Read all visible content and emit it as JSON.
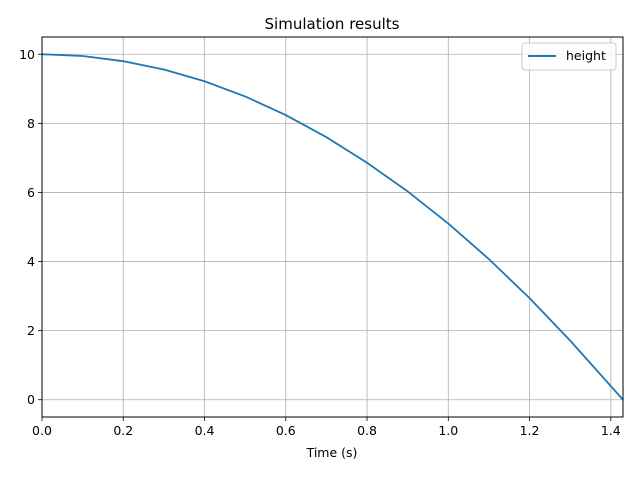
{
  "chart_data": {
    "type": "line",
    "title": "Simulation results",
    "xlabel": "Time (s)",
    "ylabel": "",
    "xlim": [
      0.0,
      1.43
    ],
    "ylim": [
      -0.5,
      10.5
    ],
    "xticks": [
      0.0,
      0.2,
      0.4,
      0.6,
      0.8,
      1.0,
      1.2,
      1.4
    ],
    "xtick_labels": [
      "0.0",
      "0.2",
      "0.4",
      "0.6",
      "0.8",
      "1.0",
      "1.2",
      "1.4"
    ],
    "yticks": [
      0,
      2,
      4,
      6,
      8,
      10
    ],
    "ytick_labels": [
      "0",
      "2",
      "4",
      "6",
      "8",
      "10"
    ],
    "grid": true,
    "legend_position": "upper-right",
    "series": [
      {
        "name": "height",
        "color": "#1f77b4",
        "x": [
          0.0,
          0.1,
          0.2,
          0.3,
          0.4,
          0.5,
          0.6,
          0.7,
          0.8,
          0.9,
          1.0,
          1.1,
          1.2,
          1.3,
          1.43
        ],
        "y": [
          10.0,
          9.95,
          9.8,
          9.56,
          9.22,
          8.78,
          8.24,
          7.6,
          6.86,
          6.03,
          5.1,
          4.07,
          2.94,
          1.71,
          0.0
        ]
      }
    ]
  }
}
